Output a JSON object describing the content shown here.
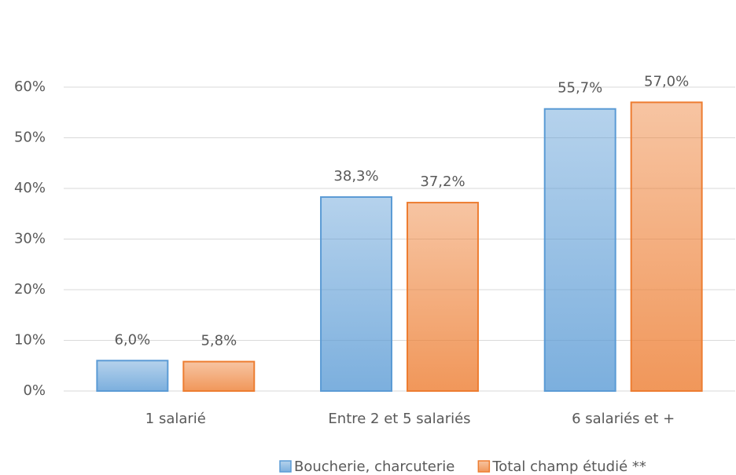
{
  "chart_data": {
    "type": "bar",
    "categories": [
      "1 salarié",
      "Entre 2 et 5 salariés",
      "6 salariés et +"
    ],
    "series": [
      {
        "name": "Boucherie, charcuterie",
        "color": "#5b9bd5",
        "values": [
          6.0,
          38.3,
          55.7
        ],
        "value_labels": [
          "6,0%",
          "38,3%",
          "55,7%"
        ]
      },
      {
        "name": "Total champ étudié **",
        "color": "#ed7d31",
        "values": [
          5.8,
          37.2,
          57.0
        ],
        "value_labels": [
          "5,8%",
          "37,2%",
          "57,0%"
        ]
      }
    ],
    "ylim": [
      0,
      60
    ],
    "yticks": [
      {
        "value": 0,
        "label": "0%"
      },
      {
        "value": 10,
        "label": "10%"
      },
      {
        "value": 20,
        "label": "20%"
      },
      {
        "value": 30,
        "label": "30%"
      },
      {
        "value": 40,
        "label": "40%"
      },
      {
        "value": 50,
        "label": "50%"
      },
      {
        "value": 60,
        "label": "60%"
      }
    ],
    "grid": true,
    "legend": "bottom"
  }
}
